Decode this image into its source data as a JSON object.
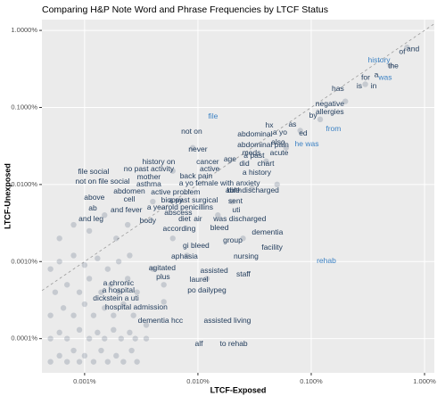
{
  "chart_data": {
    "type": "text-scatter",
    "title": "Comparing H&P Note Word and Phrase Frequencies by LTCF Status",
    "x_label": "LTCF-Exposed",
    "y_label": "LTCF-Unexposed",
    "log_x": true,
    "log_y": true,
    "grid": true,
    "diagonal": true,
    "xlim": [
      0.00042,
      1.22
    ],
    "ylim": [
      3.6e-05,
      1.38
    ],
    "xticks": [
      {
        "value": 0.001,
        "label": "0.001%"
      },
      {
        "value": 0.01,
        "label": "0.010%"
      },
      {
        "value": 0.1,
        "label": "0.100%"
      },
      {
        "value": 1,
        "label": "1.000%"
      }
    ],
    "yticks": [
      {
        "value": 0.0001,
        "label": "0.0001%"
      },
      {
        "value": 0.001,
        "label": "0.0010%"
      },
      {
        "value": 0.01,
        "label": "0.0100%"
      },
      {
        "value": 0.1,
        "label": "0.1000%"
      },
      {
        "value": 1,
        "label": "1.0000%"
      }
    ],
    "points": {
      "color": "#1f3a5a",
      "x": [
        0.0005,
        0.0006,
        0.0007,
        0.0008,
        0.0009,
        0.001,
        0.0012,
        0.0014,
        0.0016,
        0.0019,
        0.0022,
        0.0026,
        0.0029,
        0.0005,
        0.0006,
        0.0007,
        0.0009,
        0.0011,
        0.0013,
        0.0015,
        0.0018,
        0.0021,
        0.0025,
        0.0028,
        0.0005,
        0.00065,
        0.0008,
        0.001,
        0.0012,
        0.0015,
        0.0018,
        0.0022,
        0.0027,
        0.00055,
        0.0007,
        0.0009,
        0.0011,
        0.0014,
        0.0017,
        0.002,
        0.0024,
        0.0029,
        0.0005,
        0.0006,
        0.0008,
        0.001,
        0.0013,
        0.0016,
        0.002,
        0.0025,
        0.0006,
        0.0008,
        0.0011,
        0.0015,
        0.0019,
        0.0024,
        0.0035,
        0.004,
        0.005,
        0.006,
        0.008,
        0.012,
        0.015,
        0.02,
        0.03,
        0.04,
        0.06,
        0.08,
        0.12,
        0.2,
        0.3,
        0.5,
        0.7,
        0.004,
        0.006,
        0.009,
        0.0035,
        0.005,
        0.025,
        0.05
      ],
      "y": [
        5e-05,
        6e-05,
        5e-05,
        7e-05,
        5e-05,
        6e-05,
        5e-05,
        7e-05,
        5e-05,
        6e-05,
        5e-05,
        7e-05,
        5e-05,
        0.0001,
        0.00012,
        0.0001,
        0.00013,
        0.0001,
        0.00012,
        0.0001,
        0.00013,
        0.0001,
        0.00012,
        0.0001,
        0.0002,
        0.00025,
        0.0002,
        0.00028,
        0.0002,
        0.00025,
        0.0002,
        0.00028,
        0.0002,
        0.0004,
        0.0005,
        0.0004,
        0.0006,
        0.0004,
        0.0005,
        0.0004,
        0.0006,
        0.0004,
        0.0008,
        0.001,
        0.0012,
        0.0009,
        0.0011,
        0.0008,
        0.001,
        0.0012,
        0.002,
        0.003,
        0.0025,
        0.004,
        0.002,
        0.003,
        0.00015,
        0.0008,
        0.0003,
        0.002,
        0.0012,
        0.0006,
        0.004,
        0.006,
        0.009,
        0.02,
        0.03,
        0.05,
        0.07,
        0.12,
        0.2,
        0.35,
        0.6,
        0.006,
        0.015,
        0.03,
        0.0001,
        0.0005,
        0.002,
        0.01
      ]
    },
    "word_groups": [
      {
        "color": "#1f3a5a",
        "words": [
          "and",
          "of",
          "the",
          "for",
          "a",
          "is",
          "in",
          "has",
          "negative",
          "allergies",
          "by",
          "as",
          "hx",
          "a yo",
          "ed",
          "abdominal",
          "also",
          "not on",
          "abdominal pain",
          "never",
          "meds",
          "acute",
          "age",
          "a past",
          "cancer",
          "did",
          "chart",
          "active",
          "a history",
          "history on",
          "no past activity",
          "file social",
          "mother",
          "back pain",
          "asthma",
          "a yo female with anxiety",
          "not on file social",
          "abdomen",
          "active problem",
          "birth",
          "able discharged",
          "above",
          "cell",
          "biopsy",
          "a past surgical",
          "sent",
          "a yearold penicillins",
          "uti",
          "abscess",
          "ab",
          "and fever",
          "body",
          "diet",
          "air",
          "was discharged",
          "and leg",
          "according",
          "bleed",
          "dementia",
          "group",
          "facility",
          "gi bleed",
          "aphasia",
          "nursing",
          "agitated",
          "assisted",
          "plus",
          "staff",
          "laurel",
          "a chronic",
          "po dailypeg",
          "a hospital",
          "dickstein a uti",
          "hospital admission",
          "dementia hcc",
          "assisted living",
          "alf",
          "to rehab"
        ],
        "x": [
          0.791,
          0.635,
          0.53,
          0.302,
          0.376,
          0.266,
          0.356,
          0.172,
          0.146,
          0.146,
          0.104,
          0.0683,
          0.0427,
          0.053,
          0.0849,
          0.0319,
          0.0511,
          0.00881,
          0.0376,
          0.01,
          0.0297,
          0.0521,
          0.0192,
          0.0313,
          0.0122,
          0.0257,
          0.0397,
          0.0127,
          0.0331,
          0.00451,
          0.00369,
          0.0012,
          0.00369,
          0.00964,
          0.00369,
          0.0155,
          0.00144,
          0.00248,
          0.00635,
          0.021,
          0.0302,
          0.00122,
          0.00248,
          0.00591,
          0.00914,
          0.0214,
          0.00696,
          0.0218,
          0.00671,
          0.00118,
          0.00234,
          0.00362,
          0.00762,
          0.01,
          0.0234,
          0.00114,
          0.00684,
          0.0155,
          0.0411,
          0.0203,
          0.0451,
          0.00964,
          0.00762,
          0.0266,
          0.00484,
          0.0139,
          0.00493,
          0.0252,
          0.0102,
          0.00199,
          0.012,
          0.00199,
          0.00189,
          0.00286,
          0.00467,
          0.0182,
          0.0102,
          0.0207
        ],
        "y": [
          0.571,
          0.528,
          0.345,
          0.244,
          0.264,
          0.187,
          0.187,
          0.173,
          0.11,
          0.0864,
          0.0777,
          0.0595,
          0.058,
          0.0469,
          0.0456,
          0.0444,
          0.0349,
          0.0481,
          0.0323,
          0.0282,
          0.0254,
          0.0254,
          0.0211,
          0.0234,
          0.0195,
          0.0185,
          0.0185,
          0.0157,
          0.0141,
          0.0195,
          0.0157,
          0.0145,
          0.0124,
          0.0127,
          0.01,
          0.0103,
          0.0108,
          0.00809,
          0.00787,
          0.0083,
          0.0083,
          0.0067,
          0.00636,
          0.0062,
          0.0062,
          0.00603,
          0.005,
          0.00462,
          0.00427,
          0.00487,
          0.00462,
          0.00336,
          0.00354,
          0.00354,
          0.00354,
          0.00354,
          0.00264,
          0.00272,
          0.00238,
          0.00187,
          0.00151,
          0.0016,
          0.00116,
          0.00116,
          0.000819,
          0.000756,
          0.000628,
          0.00068,
          0.00058,
          0.000521,
          0.000421,
          0.000421,
          0.000331,
          0.000254,
          0.00017,
          0.00017,
          8.53e-05,
          8.53e-05
        ]
      },
      {
        "color": "#3c82c4",
        "words": [
          "history",
          "was",
          "file",
          "from",
          "he was",
          "rehab"
        ],
        "x": [
          0.397,
          0.45,
          0.0136,
          0.157,
          0.0914,
          0.136
        ],
        "y": [
          0.405,
          0.244,
          0.0757,
          0.0521,
          0.0331,
          0.00101
        ]
      }
    ]
  }
}
